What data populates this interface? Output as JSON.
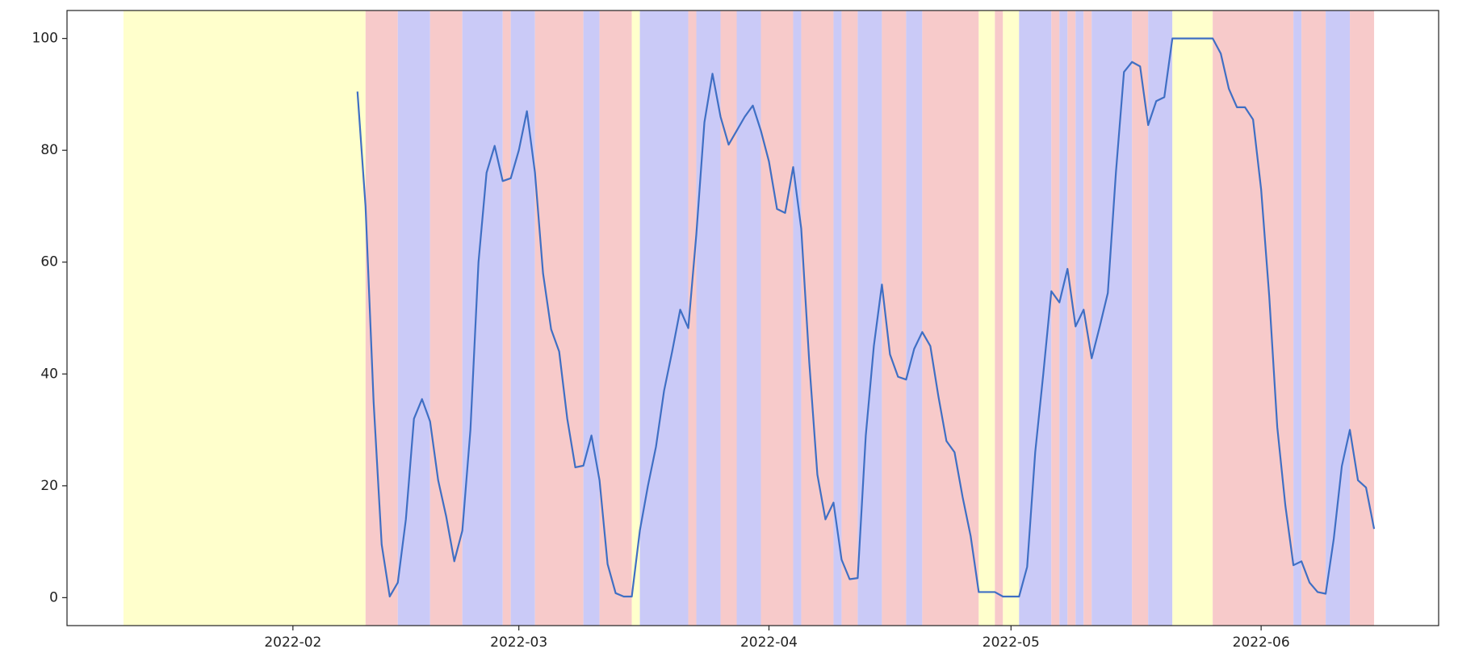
{
  "chart_data": {
    "type": "line",
    "color": "#3f6fc4",
    "xlim": [
      "2022-01-04",
      "2022-06-23"
    ],
    "ylim": [
      -5,
      105
    ],
    "yticks": [
      0,
      20,
      40,
      60,
      80,
      100
    ],
    "xticks": [
      {
        "value": "2022-02-01",
        "label": "2022-02"
      },
      {
        "value": "2022-03-01",
        "label": "2022-03"
      },
      {
        "value": "2022-04-01",
        "label": "2022-04"
      },
      {
        "value": "2022-05-01",
        "label": "2022-05"
      },
      {
        "value": "2022-06-01",
        "label": "2022-06"
      }
    ],
    "spans": [
      {
        "start": "2022-01-11",
        "end": "2022-02-10",
        "color": "#ffffcc"
      },
      {
        "start": "2022-02-10",
        "end": "2022-02-14",
        "color": "#f7caca"
      },
      {
        "start": "2022-02-14",
        "end": "2022-02-18",
        "color": "#cacaf7"
      },
      {
        "start": "2022-02-18",
        "end": "2022-02-22",
        "color": "#f7caca"
      },
      {
        "start": "2022-02-22",
        "end": "2022-02-27",
        "color": "#cacaf7"
      },
      {
        "start": "2022-02-27",
        "end": "2022-02-28",
        "color": "#f7caca"
      },
      {
        "start": "2022-02-28",
        "end": "2022-03-03",
        "color": "#cacaf7"
      },
      {
        "start": "2022-03-03",
        "end": "2022-03-09",
        "color": "#f7caca"
      },
      {
        "start": "2022-03-09",
        "end": "2022-03-11",
        "color": "#cacaf7"
      },
      {
        "start": "2022-03-11",
        "end": "2022-03-15",
        "color": "#f7caca"
      },
      {
        "start": "2022-03-15",
        "end": "2022-03-16",
        "color": "#ffffcc"
      },
      {
        "start": "2022-03-16",
        "end": "2022-03-22",
        "color": "#cacaf7"
      },
      {
        "start": "2022-03-22",
        "end": "2022-03-23",
        "color": "#f7caca"
      },
      {
        "start": "2022-03-23",
        "end": "2022-03-26",
        "color": "#cacaf7"
      },
      {
        "start": "2022-03-26",
        "end": "2022-03-28",
        "color": "#f7caca"
      },
      {
        "start": "2022-03-28",
        "end": "2022-03-31",
        "color": "#cacaf7"
      },
      {
        "start": "2022-03-31",
        "end": "2022-04-04",
        "color": "#f7caca"
      },
      {
        "start": "2022-04-04",
        "end": "2022-04-05",
        "color": "#cacaf7"
      },
      {
        "start": "2022-04-05",
        "end": "2022-04-09",
        "color": "#f7caca"
      },
      {
        "start": "2022-04-09",
        "end": "2022-04-10",
        "color": "#cacaf7"
      },
      {
        "start": "2022-04-10",
        "end": "2022-04-12",
        "color": "#f7caca"
      },
      {
        "start": "2022-04-12",
        "end": "2022-04-15",
        "color": "#cacaf7"
      },
      {
        "start": "2022-04-15",
        "end": "2022-04-18",
        "color": "#f7caca"
      },
      {
        "start": "2022-04-18",
        "end": "2022-04-20",
        "color": "#cacaf7"
      },
      {
        "start": "2022-04-20",
        "end": "2022-04-27",
        "color": "#f7caca"
      },
      {
        "start": "2022-04-27",
        "end": "2022-04-29",
        "color": "#ffffcc"
      },
      {
        "start": "2022-04-29",
        "end": "2022-04-30",
        "color": "#f7caca"
      },
      {
        "start": "2022-04-30",
        "end": "2022-05-02",
        "color": "#ffffcc"
      },
      {
        "start": "2022-05-02",
        "end": "2022-05-06",
        "color": "#cacaf7"
      },
      {
        "start": "2022-05-06",
        "end": "2022-05-07",
        "color": "#f7caca"
      },
      {
        "start": "2022-05-07",
        "end": "2022-05-08",
        "color": "#cacaf7"
      },
      {
        "start": "2022-05-08",
        "end": "2022-05-09",
        "color": "#f7caca"
      },
      {
        "start": "2022-05-09",
        "end": "2022-05-10",
        "color": "#cacaf7"
      },
      {
        "start": "2022-05-10",
        "end": "2022-05-11",
        "color": "#f7caca"
      },
      {
        "start": "2022-05-11",
        "end": "2022-05-16",
        "color": "#cacaf7"
      },
      {
        "start": "2022-05-16",
        "end": "2022-05-18",
        "color": "#f7caca"
      },
      {
        "start": "2022-05-18",
        "end": "2022-05-21",
        "color": "#cacaf7"
      },
      {
        "start": "2022-05-21",
        "end": "2022-05-26",
        "color": "#ffffcc"
      },
      {
        "start": "2022-05-26",
        "end": "2022-06-05",
        "color": "#f7caca"
      },
      {
        "start": "2022-06-05",
        "end": "2022-06-06",
        "color": "#cacaf7"
      },
      {
        "start": "2022-06-06",
        "end": "2022-06-09",
        "color": "#f7caca"
      },
      {
        "start": "2022-06-09",
        "end": "2022-06-12",
        "color": "#cacaf7"
      },
      {
        "start": "2022-06-12",
        "end": "2022-06-15",
        "color": "#f7caca"
      }
    ],
    "x": [
      "2022-02-09",
      "2022-02-10",
      "2022-02-11",
      "2022-02-12",
      "2022-02-13",
      "2022-02-14",
      "2022-02-15",
      "2022-02-16",
      "2022-02-17",
      "2022-02-18",
      "2022-02-19",
      "2022-02-20",
      "2022-02-21",
      "2022-02-22",
      "2022-02-23",
      "2022-02-24",
      "2022-02-25",
      "2022-02-26",
      "2022-02-27",
      "2022-02-28",
      "2022-03-01",
      "2022-03-02",
      "2022-03-03",
      "2022-03-04",
      "2022-03-05",
      "2022-03-06",
      "2022-03-07",
      "2022-03-08",
      "2022-03-09",
      "2022-03-10",
      "2022-03-11",
      "2022-03-12",
      "2022-03-13",
      "2022-03-14",
      "2022-03-15",
      "2022-03-16",
      "2022-03-17",
      "2022-03-18",
      "2022-03-19",
      "2022-03-20",
      "2022-03-21",
      "2022-03-22",
      "2022-03-23",
      "2022-03-24",
      "2022-03-25",
      "2022-03-26",
      "2022-03-27",
      "2022-03-28",
      "2022-03-29",
      "2022-03-30",
      "2022-03-31",
      "2022-04-01",
      "2022-04-02",
      "2022-04-03",
      "2022-04-04",
      "2022-04-05",
      "2022-04-06",
      "2022-04-07",
      "2022-04-08",
      "2022-04-09",
      "2022-04-10",
      "2022-04-11",
      "2022-04-12",
      "2022-04-13",
      "2022-04-14",
      "2022-04-15",
      "2022-04-16",
      "2022-04-17",
      "2022-04-18",
      "2022-04-19",
      "2022-04-20",
      "2022-04-21",
      "2022-04-22",
      "2022-04-23",
      "2022-04-24",
      "2022-04-25",
      "2022-04-26",
      "2022-04-27",
      "2022-04-28",
      "2022-04-29",
      "2022-04-30",
      "2022-05-01",
      "2022-05-02",
      "2022-05-03",
      "2022-05-04",
      "2022-05-05",
      "2022-05-06",
      "2022-05-07",
      "2022-05-08",
      "2022-05-09",
      "2022-05-10",
      "2022-05-11",
      "2022-05-12",
      "2022-05-13",
      "2022-05-14",
      "2022-05-15",
      "2022-05-16",
      "2022-05-17",
      "2022-05-18",
      "2022-05-19",
      "2022-05-20",
      "2022-05-21",
      "2022-05-22",
      "2022-05-23",
      "2022-05-24",
      "2022-05-25",
      "2022-05-26",
      "2022-05-27",
      "2022-05-28",
      "2022-05-29",
      "2022-05-30",
      "2022-05-31",
      "2022-06-01",
      "2022-06-02",
      "2022-06-03",
      "2022-06-04",
      "2022-06-05",
      "2022-06-06",
      "2022-06-07",
      "2022-06-08",
      "2022-06-09",
      "2022-06-10",
      "2022-06-11",
      "2022-06-12",
      "2022-06-13",
      "2022-06-14",
      "2022-06-15"
    ],
    "values": [
      90.5,
      70,
      35,
      9.5,
      0.2,
      2.7,
      14,
      32,
      35.5,
      31.5,
      21,
      14.5,
      6.5,
      12,
      30,
      60,
      76,
      80.8,
      74.5,
      75,
      80,
      87,
      76,
      58,
      48,
      44,
      32,
      23.3,
      23.6,
      29,
      21,
      6,
      0.8,
      0.2,
      0.2,
      12,
      20,
      27,
      37,
      44,
      51.5,
      48.2,
      65,
      85,
      93.7,
      86,
      81,
      83.5,
      86,
      88,
      83.5,
      78,
      69.5,
      68.8,
      77,
      66,
      42,
      22,
      14,
      17,
      6.8,
      3.3,
      3.5,
      29,
      45,
      56,
      43.5,
      39.5,
      39,
      44.5,
      47.5,
      45,
      36,
      28,
      26,
      18,
      11,
      1,
      1,
      1,
      0.2,
      0.2,
      0.2,
      5.5,
      26,
      40,
      54.8,
      52.8,
      58.8,
      48.5,
      51.5,
      42.8,
      48.5,
      54.5,
      76,
      94,
      95.8,
      95,
      84.5,
      88.8,
      89.5,
      100,
      100,
      100,
      100,
      100,
      100,
      97.3,
      91,
      87.7,
      87.7,
      85.5,
      73,
      54,
      30.5,
      16.5,
      5.8,
      6.5,
      2.7,
      1,
      0.7,
      10.5,
      23.5,
      30,
      21,
      19.7,
      12.3
    ]
  }
}
